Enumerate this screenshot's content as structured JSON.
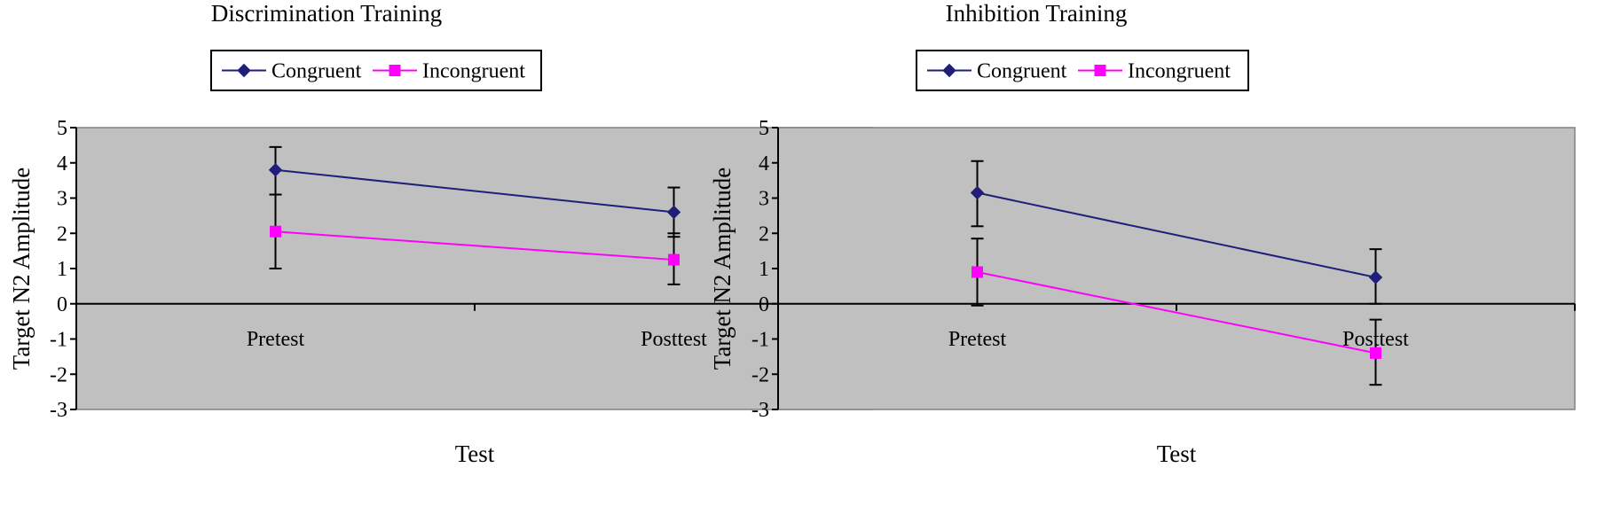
{
  "chart_data": [
    {
      "type": "line",
      "title": "Discrimination Training",
      "xlabel": "Test",
      "ylabel": "Target N2 Amplitude",
      "categories": [
        "Pretest",
        "Posttest"
      ],
      "ylim": [
        -3,
        5
      ],
      "yticks": [
        5,
        4,
        3,
        2,
        1,
        0,
        -1,
        -2,
        -3
      ],
      "grid": false,
      "legend": "top",
      "series": [
        {
          "name": "Congruent",
          "color": "#1f1f7a",
          "marker": "diamond",
          "values": [
            3.8,
            2.6
          ],
          "err_low": [
            3.1,
            1.9
          ],
          "err_high": [
            4.45,
            3.3
          ]
        },
        {
          "name": "Incongruent",
          "color": "#ff00ff",
          "marker": "square",
          "values": [
            2.05,
            1.25
          ],
          "err_low": [
            1.0,
            0.55
          ],
          "err_high": [
            3.1,
            2.0
          ]
        }
      ]
    },
    {
      "type": "line",
      "title": "Inhibition Training",
      "xlabel": "Test",
      "ylabel": "Target N2 Amplitude",
      "categories": [
        "Pretest",
        "Posttest"
      ],
      "ylim": [
        -3,
        5
      ],
      "yticks": [
        5,
        4,
        3,
        2,
        1,
        0,
        -1,
        -2,
        -3
      ],
      "grid": false,
      "legend": "top",
      "series": [
        {
          "name": "Congruent",
          "color": "#1f1f7a",
          "marker": "diamond",
          "values": [
            3.15,
            0.75
          ],
          "err_low": [
            2.2,
            0.0
          ],
          "err_high": [
            4.05,
            1.55
          ]
        },
        {
          "name": "Incongruent",
          "color": "#ff00ff",
          "marker": "square",
          "values": [
            0.9,
            -1.4
          ],
          "err_low": [
            -0.05,
            -2.3
          ],
          "err_high": [
            1.85,
            -0.45
          ]
        }
      ]
    }
  ]
}
